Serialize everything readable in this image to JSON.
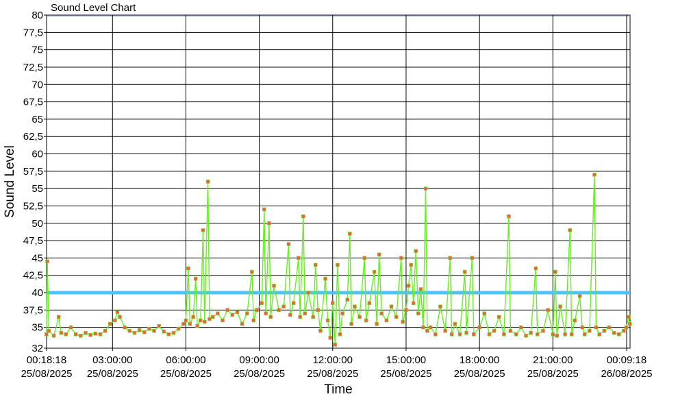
{
  "chart_data": {
    "type": "line",
    "title": "Sound Level Chart",
    "xlabel": "Time",
    "ylabel": "Sound Level",
    "ylim": [
      32,
      80
    ],
    "y_ticks": [
      32,
      35,
      37.5,
      40,
      42.5,
      45,
      47.5,
      50,
      52.5,
      55,
      57.5,
      60,
      62.5,
      65,
      67.5,
      70,
      72.5,
      75,
      77.5,
      80
    ],
    "y_tick_labels": [
      "32",
      "35",
      "37,5",
      "40",
      "42,5",
      "45",
      "47,5",
      "50",
      "52,5",
      "55",
      "57,5",
      "60",
      "62,5",
      "65",
      "67,5",
      "70",
      "72,5",
      "75",
      "77,5",
      "80"
    ],
    "x_range": [
      "25/08/2025 00:18:18",
      "26/08/2025 00:09:18"
    ],
    "x_ticks": [
      {
        "time": "00:18:18",
        "date": "25/08/2025"
      },
      {
        "time": "03:00:00",
        "date": "25/08/2025"
      },
      {
        "time": "06:00:00",
        "date": "25/08/2025"
      },
      {
        "time": "09:00:00",
        "date": "25/08/2025"
      },
      {
        "time": "12:00:00",
        "date": "25/08/2025"
      },
      {
        "time": "15:00:00",
        "date": "25/08/2025"
      },
      {
        "time": "18:00:00",
        "date": "25/08/2025"
      },
      {
        "time": "21:00:00",
        "date": "25/08/2025"
      },
      {
        "time": "00:09:18",
        "date": "26/08/2025"
      }
    ],
    "grid": true,
    "threshold": {
      "value": 40,
      "color": "#4fc3f7"
    },
    "series": [
      {
        "color": "#66ee22",
        "marker_color": "#e8643c",
        "points": [
          [
            "00:18",
            34.0
          ],
          [
            "00:20",
            44.5
          ],
          [
            "00:24",
            34.5
          ],
          [
            "00:36",
            33.8
          ],
          [
            "00:48",
            36.5
          ],
          [
            "00:54",
            34.2
          ],
          [
            "01:06",
            34.0
          ],
          [
            "01:18",
            35.0
          ],
          [
            "01:30",
            34.0
          ],
          [
            "01:42",
            33.8
          ],
          [
            "01:54",
            34.2
          ],
          [
            "02:06",
            33.9
          ],
          [
            "02:18",
            34.1
          ],
          [
            "02:30",
            34.0
          ],
          [
            "02:42",
            34.5
          ],
          [
            "02:54",
            35.5
          ],
          [
            "03:06",
            36.0
          ],
          [
            "03:12",
            37.2
          ],
          [
            "03:18",
            36.5
          ],
          [
            "03:30",
            35.0
          ],
          [
            "03:42",
            34.5
          ],
          [
            "03:54",
            34.2
          ],
          [
            "04:06",
            34.6
          ],
          [
            "04:18",
            34.3
          ],
          [
            "04:30",
            34.8
          ],
          [
            "04:42",
            34.5
          ],
          [
            "04:54",
            35.2
          ],
          [
            "05:06",
            34.4
          ],
          [
            "05:18",
            34.0
          ],
          [
            "05:30",
            34.2
          ],
          [
            "05:42",
            34.8
          ],
          [
            "05:54",
            35.5
          ],
          [
            "06:00",
            36.0
          ],
          [
            "06:06",
            43.5
          ],
          [
            "06:10",
            35.5
          ],
          [
            "06:18",
            36.5
          ],
          [
            "06:24",
            42.0
          ],
          [
            "06:28",
            35.2
          ],
          [
            "06:36",
            36.0
          ],
          [
            "06:42",
            49.0
          ],
          [
            "06:46",
            35.8
          ],
          [
            "06:54",
            56.0
          ],
          [
            "06:58",
            36.2
          ],
          [
            "07:06",
            36.5
          ],
          [
            "07:18",
            37.0
          ],
          [
            "07:30",
            36.0
          ],
          [
            "07:42",
            37.5
          ],
          [
            "07:54",
            36.8
          ],
          [
            "08:06",
            37.2
          ],
          [
            "08:18",
            35.5
          ],
          [
            "08:30",
            37.0
          ],
          [
            "08:42",
            43.0
          ],
          [
            "08:46",
            36.0
          ],
          [
            "08:54",
            37.5
          ],
          [
            "09:06",
            38.5
          ],
          [
            "09:12",
            52.0
          ],
          [
            "09:16",
            37.0
          ],
          [
            "09:24",
            50.0
          ],
          [
            "09:28",
            36.5
          ],
          [
            "09:36",
            41.0
          ],
          [
            "09:48",
            37.5
          ],
          [
            "10:00",
            38.0
          ],
          [
            "10:12",
            47.0
          ],
          [
            "10:16",
            36.8
          ],
          [
            "10:24",
            38.5
          ],
          [
            "10:36",
            45.0
          ],
          [
            "10:40",
            36.5
          ],
          [
            "10:48",
            51.0
          ],
          [
            "10:52",
            37.0
          ],
          [
            "11:00",
            40.0
          ],
          [
            "11:12",
            36.5
          ],
          [
            "11:18",
            44.0
          ],
          [
            "11:24",
            37.5
          ],
          [
            "11:30",
            34.5
          ],
          [
            "11:42",
            42.0
          ],
          [
            "11:48",
            36.0
          ],
          [
            "11:54",
            33.5
          ],
          [
            "12:00",
            38.5
          ],
          [
            "12:06",
            32.5
          ],
          [
            "12:12",
            44.0
          ],
          [
            "12:18",
            34.0
          ],
          [
            "12:24",
            37.0
          ],
          [
            "12:36",
            39.0
          ],
          [
            "12:42",
            48.5
          ],
          [
            "12:46",
            35.5
          ],
          [
            "12:54",
            38.0
          ],
          [
            "13:06",
            36.5
          ],
          [
            "13:18",
            45.0
          ],
          [
            "13:22",
            36.0
          ],
          [
            "13:30",
            38.5
          ],
          [
            "13:42",
            43.0
          ],
          [
            "13:48",
            35.5
          ],
          [
            "13:54",
            45.5
          ],
          [
            "14:00",
            37.0
          ],
          [
            "14:12",
            36.0
          ],
          [
            "14:24",
            38.0
          ],
          [
            "14:36",
            36.5
          ],
          [
            "14:48",
            45.0
          ],
          [
            "14:52",
            35.8
          ],
          [
            "15:00",
            37.5
          ],
          [
            "15:06",
            41.0
          ],
          [
            "15:12",
            44.0
          ],
          [
            "15:18",
            38.5
          ],
          [
            "15:24",
            46.0
          ],
          [
            "15:30",
            37.0
          ],
          [
            "15:36",
            40.5
          ],
          [
            "15:42",
            35.0
          ],
          [
            "15:48",
            55.0
          ],
          [
            "15:52",
            34.5
          ],
          [
            "16:00",
            35.0
          ],
          [
            "16:12",
            34.0
          ],
          [
            "16:24",
            38.0
          ],
          [
            "16:36",
            34.5
          ],
          [
            "16:48",
            45.0
          ],
          [
            "16:52",
            34.0
          ],
          [
            "17:00",
            35.5
          ],
          [
            "17:12",
            34.0
          ],
          [
            "17:24",
            43.0
          ],
          [
            "17:28",
            34.2
          ],
          [
            "17:42",
            45.0
          ],
          [
            "17:46",
            34.0
          ],
          [
            "18:00",
            35.0
          ],
          [
            "18:12",
            37.0
          ],
          [
            "18:24",
            34.0
          ],
          [
            "18:36",
            34.5
          ],
          [
            "18:48",
            36.5
          ],
          [
            "19:00",
            34.0
          ],
          [
            "19:12",
            51.0
          ],
          [
            "19:16",
            34.5
          ],
          [
            "19:30",
            34.0
          ],
          [
            "19:42",
            35.0
          ],
          [
            "19:54",
            33.8
          ],
          [
            "20:06",
            34.2
          ],
          [
            "20:18",
            43.5
          ],
          [
            "20:22",
            34.0
          ],
          [
            "20:36",
            34.5
          ],
          [
            "20:48",
            37.5
          ],
          [
            "21:00",
            34.0
          ],
          [
            "21:06",
            43.0
          ],
          [
            "21:10",
            33.8
          ],
          [
            "21:18",
            38.0
          ],
          [
            "21:30",
            34.0
          ],
          [
            "21:42",
            49.0
          ],
          [
            "21:46",
            34.0
          ],
          [
            "21:54",
            36.0
          ],
          [
            "22:06",
            39.5
          ],
          [
            "22:12",
            35.0
          ],
          [
            "22:18",
            34.0
          ],
          [
            "22:30",
            34.5
          ],
          [
            "22:42",
            57.0
          ],
          [
            "22:46",
            35.0
          ],
          [
            "22:54",
            34.0
          ],
          [
            "23:06",
            34.5
          ],
          [
            "23:18",
            35.0
          ],
          [
            "23:30",
            34.2
          ],
          [
            "23:42",
            34.0
          ],
          [
            "23:54",
            34.5
          ],
          [
            "24:00",
            35.0
          ],
          [
            "24:06",
            36.5
          ],
          [
            "24:09",
            35.5
          ]
        ]
      }
    ]
  }
}
